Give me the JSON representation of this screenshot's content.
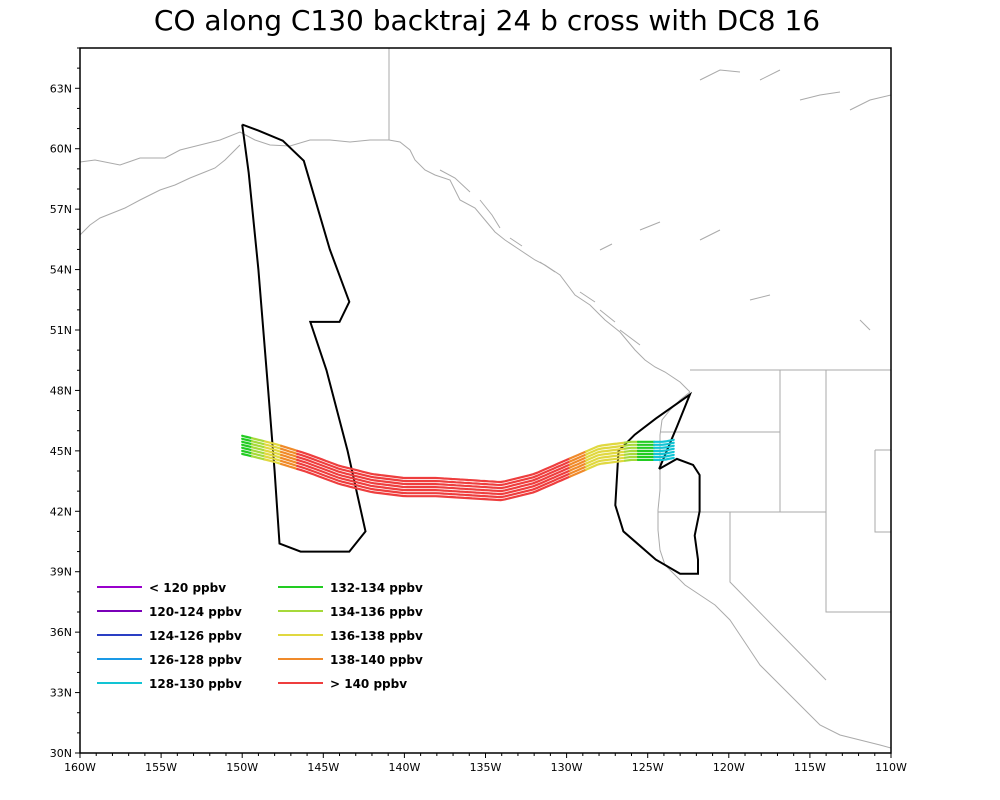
{
  "title": "CO along C130 backtraj 24 b cross with DC8 16",
  "colors": {
    "coastline": "#aaaaaa",
    "flight_track": "#000000",
    "frame": "#000000",
    "background": "#ffffff"
  },
  "chart_data": {
    "type": "map",
    "title": "CO along C130 backtraj 24 b cross with DC8 16",
    "projection": "lat-lon",
    "lon_range": [
      -160,
      -110
    ],
    "lat_range": [
      30,
      65
    ],
    "x_ticks": [
      {
        "value": -160,
        "label": "160W"
      },
      {
        "value": -155,
        "label": "155W"
      },
      {
        "value": -150,
        "label": "150W"
      },
      {
        "value": -145,
        "label": "145W"
      },
      {
        "value": -140,
        "label": "140W"
      },
      {
        "value": -135,
        "label": "135W"
      },
      {
        "value": -130,
        "label": "130W"
      },
      {
        "value": -125,
        "label": "125W"
      },
      {
        "value": -120,
        "label": "120W"
      },
      {
        "value": -115,
        "label": "115W"
      },
      {
        "value": -110,
        "label": "110W"
      }
    ],
    "y_ticks": [
      {
        "value": 30,
        "label": "30N"
      },
      {
        "value": 33,
        "label": "33N"
      },
      {
        "value": 36,
        "label": "36N"
      },
      {
        "value": 39,
        "label": "39N"
      },
      {
        "value": 42,
        "label": "42N"
      },
      {
        "value": 45,
        "label": "45N"
      },
      {
        "value": 48,
        "label": "48N"
      },
      {
        "value": 51,
        "label": "51N"
      },
      {
        "value": 54,
        "label": "54N"
      },
      {
        "value": 57,
        "label": "57N"
      },
      {
        "value": 60,
        "label": "60N"
      },
      {
        "value": 63,
        "label": "63N"
      }
    ],
    "legend": [
      {
        "label": "< 120 ppbv",
        "color": "#9900cc"
      },
      {
        "label": "120-124 ppbv",
        "color": "#7a00b8"
      },
      {
        "label": "124-126 ppbv",
        "color": "#2a3fc4"
      },
      {
        "label": "126-128 ppbv",
        "color": "#1a99e6"
      },
      {
        "label": "128-130 ppbv",
        "color": "#12c4d4"
      },
      {
        "label": "132-134 ppbv",
        "color": "#22cc22"
      },
      {
        "label": "134-136 ppbv",
        "color": "#a6d93a"
      },
      {
        "label": "136-138 ppbv",
        "color": "#e0d840"
      },
      {
        "label": "138-140 ppbv",
        "color": "#f08a2a"
      },
      {
        "label": "> 140 ppbv",
        "color": "#ee3e3e"
      }
    ],
    "legend_placement": "bottom-left",
    "flight_track": [
      [
        -150.0,
        61.2
      ],
      [
        -149.6,
        58.8
      ],
      [
        -149.0,
        54.0
      ],
      [
        -148.4,
        48.0
      ],
      [
        -148.0,
        44.0
      ],
      [
        -147.7,
        40.4
      ],
      [
        -146.4,
        40.0
      ],
      [
        -143.4,
        40.0
      ],
      [
        -142.4,
        41.0
      ],
      [
        -143.5,
        45.0
      ],
      [
        -144.8,
        49.0
      ],
      [
        -145.8,
        51.4
      ],
      [
        -144.0,
        51.4
      ],
      [
        -143.4,
        52.4
      ],
      [
        -144.6,
        55.0
      ],
      [
        -146.2,
        59.4
      ],
      [
        -147.5,
        60.4
      ],
      [
        -149.0,
        60.9
      ],
      [
        -150.0,
        61.2
      ]
    ],
    "flight_track_2": [
      [
        -124.3,
        44.1
      ],
      [
        -123.2,
        44.6
      ],
      [
        -122.2,
        44.3
      ],
      [
        -121.8,
        43.8
      ],
      [
        -121.8,
        42.0
      ],
      [
        -122.1,
        40.8
      ],
      [
        -121.9,
        39.6
      ],
      [
        -121.9,
        38.9
      ],
      [
        -123.0,
        38.9
      ],
      [
        -124.5,
        39.6
      ],
      [
        -126.5,
        41.0
      ],
      [
        -127.0,
        42.3
      ],
      [
        -126.8,
        45.0
      ],
      [
        -125.8,
        45.8
      ],
      [
        -124.5,
        46.6
      ],
      [
        -122.4,
        47.8
      ],
      [
        -123.2,
        46.2
      ],
      [
        -124.3,
        44.1
      ]
    ],
    "trajectory_segments": [
      {
        "lon_from": -150.0,
        "lon_to": -149.4,
        "color_index": 5
      },
      {
        "lon_from": -149.4,
        "lon_to": -148.6,
        "color_index": 6
      },
      {
        "lon_from": -148.6,
        "lon_to": -147.6,
        "color_index": 7
      },
      {
        "lon_from": -147.6,
        "lon_to": -146.6,
        "color_index": 8
      },
      {
        "lon_from": -146.6,
        "lon_to": -129.8,
        "color_index": 9
      },
      {
        "lon_from": -129.8,
        "lon_to": -128.8,
        "color_index": 8
      },
      {
        "lon_from": -128.8,
        "lon_to": -126.4,
        "color_index": 7
      },
      {
        "lon_from": -126.4,
        "lon_to": -125.6,
        "color_index": 6
      },
      {
        "lon_from": -125.6,
        "lon_to": -124.6,
        "color_index": 5
      },
      {
        "lon_from": -124.6,
        "lon_to": -123.4,
        "color_index": 4
      }
    ],
    "trajectory_centerline": [
      [
        -150.0,
        45.3
      ],
      [
        -148.0,
        44.9
      ],
      [
        -146.0,
        44.4
      ],
      [
        -144.0,
        43.8
      ],
      [
        -142.0,
        43.4
      ],
      [
        -140.0,
        43.2
      ],
      [
        -138.0,
        43.2
      ],
      [
        -136.0,
        43.1
      ],
      [
        -134.0,
        43.0
      ],
      [
        -132.0,
        43.4
      ],
      [
        -130.0,
        44.1
      ],
      [
        -128.0,
        44.8
      ],
      [
        -126.0,
        45.0
      ],
      [
        -124.0,
        45.0
      ],
      [
        -123.4,
        45.1
      ]
    ]
  }
}
